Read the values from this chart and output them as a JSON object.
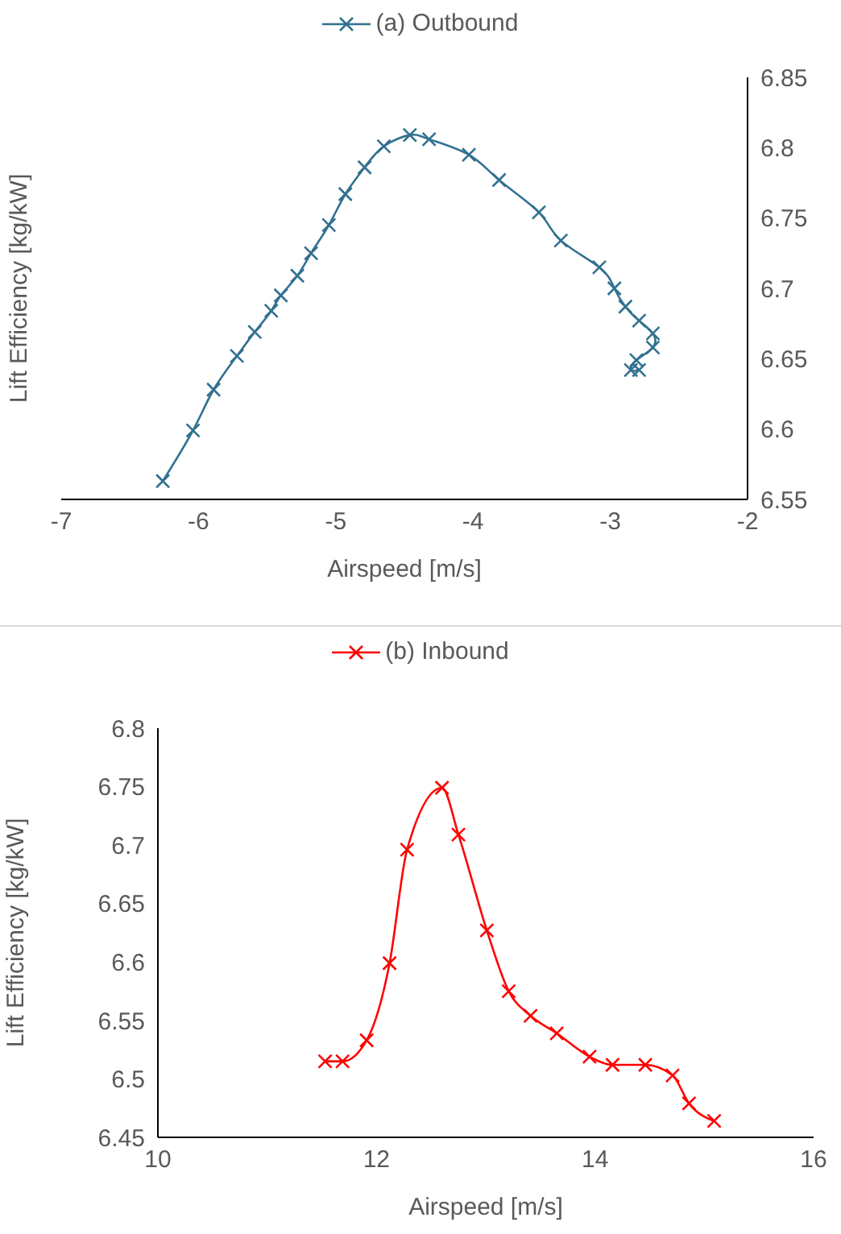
{
  "chart_data": [
    {
      "type": "line",
      "xlabel": "Airspeed [m/s]",
      "ylabel": "Lift Efficiency [kg/kW]",
      "xlim": [
        -7,
        -2
      ],
      "xticks": [
        -7,
        -6,
        -5,
        -4,
        -3,
        -2
      ],
      "ylim": [
        6.55,
        6.85
      ],
      "yticks": [
        6.55,
        6.6,
        6.65,
        6.7,
        6.75,
        6.8,
        6.85
      ],
      "grid": false,
      "legend": "top",
      "marker": "cross",
      "line_style": "solid",
      "series": [
        {
          "name": "(a) Outbound",
          "color": "#31708f",
          "x": [
            -6.26,
            -6.04,
            -5.89,
            -5.72,
            -5.59,
            -5.47,
            -5.4,
            -5.28,
            -5.18,
            -5.05,
            -4.93,
            -4.79,
            -4.65,
            -4.46,
            -4.32,
            -4.03,
            -3.81,
            -3.52,
            -3.36,
            -3.08,
            -2.97,
            -2.89,
            -2.79,
            -2.69,
            -2.69,
            -2.81,
            -2.85,
            -2.79
          ],
          "values": [
            6.563,
            6.599,
            6.628,
            6.652,
            6.669,
            6.684,
            6.695,
            6.709,
            6.725,
            6.745,
            6.767,
            6.786,
            6.801,
            6.809,
            6.806,
            6.795,
            6.777,
            6.754,
            6.734,
            6.715,
            6.7,
            6.687,
            6.677,
            6.668,
            6.658,
            6.649,
            6.642,
            6.642
          ]
        }
      ]
    },
    {
      "type": "line",
      "xlabel": "Airspeed [m/s]",
      "ylabel": "Lift Efficiency [kg/kW]",
      "xlim": [
        10,
        16
      ],
      "xticks": [
        10,
        12,
        14,
        16
      ],
      "ylim": [
        6.45,
        6.8
      ],
      "yticks": [
        6.45,
        6.5,
        6.55,
        6.6,
        6.65,
        6.7,
        6.75,
        6.8
      ],
      "grid": false,
      "legend": "top",
      "marker": "cross",
      "line_style": "solid",
      "series": [
        {
          "name": "(b) Inbound",
          "color": "#ff0000",
          "x": [
            11.53,
            11.69,
            11.91,
            12.12,
            12.28,
            12.6,
            12.75,
            13.01,
            13.21,
            13.41,
            13.65,
            13.95,
            14.16,
            14.46,
            14.71,
            14.86,
            15.09
          ],
          "values": [
            6.515,
            6.515,
            6.533,
            6.599,
            6.696,
            6.749,
            6.709,
            6.627,
            6.575,
            6.554,
            6.539,
            6.519,
            6.512,
            6.512,
            6.503,
            6.479,
            6.464
          ]
        }
      ]
    }
  ]
}
